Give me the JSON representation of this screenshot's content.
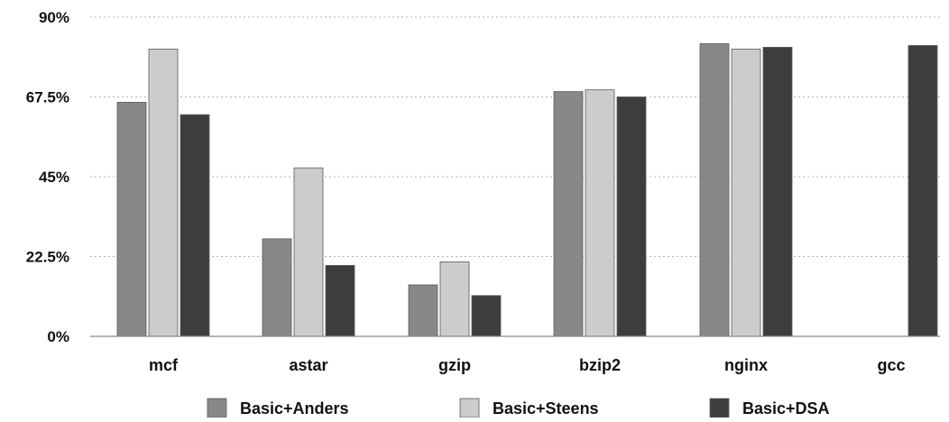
{
  "chart_data": {
    "type": "bar",
    "categories": [
      "mcf",
      "astar",
      "gzip",
      "bzip2",
      "nginx",
      "gcc"
    ],
    "series": [
      {
        "name": "Basic+Anders",
        "color": "#888888",
        "values": [
          66,
          27.5,
          14.5,
          69,
          82.5,
          null
        ]
      },
      {
        "name": "Basic+Steens",
        "color": "#cccccc",
        "values": [
          81,
          47.5,
          21,
          69.5,
          81,
          null
        ]
      },
      {
        "name": "Basic+DSA",
        "color": "#3d3d3d",
        "values": [
          62.5,
          20,
          11.5,
          67.5,
          81.5,
          82
        ]
      }
    ],
    "yticks": [
      "0%",
      "22.5%",
      "45%",
      "67.5%",
      "90%"
    ],
    "ytick_values": [
      0,
      22.5,
      45,
      67.5,
      90
    ],
    "ylim": [
      0,
      90
    ],
    "grid": "horizontal-dotted",
    "legend_position": "bottom"
  }
}
